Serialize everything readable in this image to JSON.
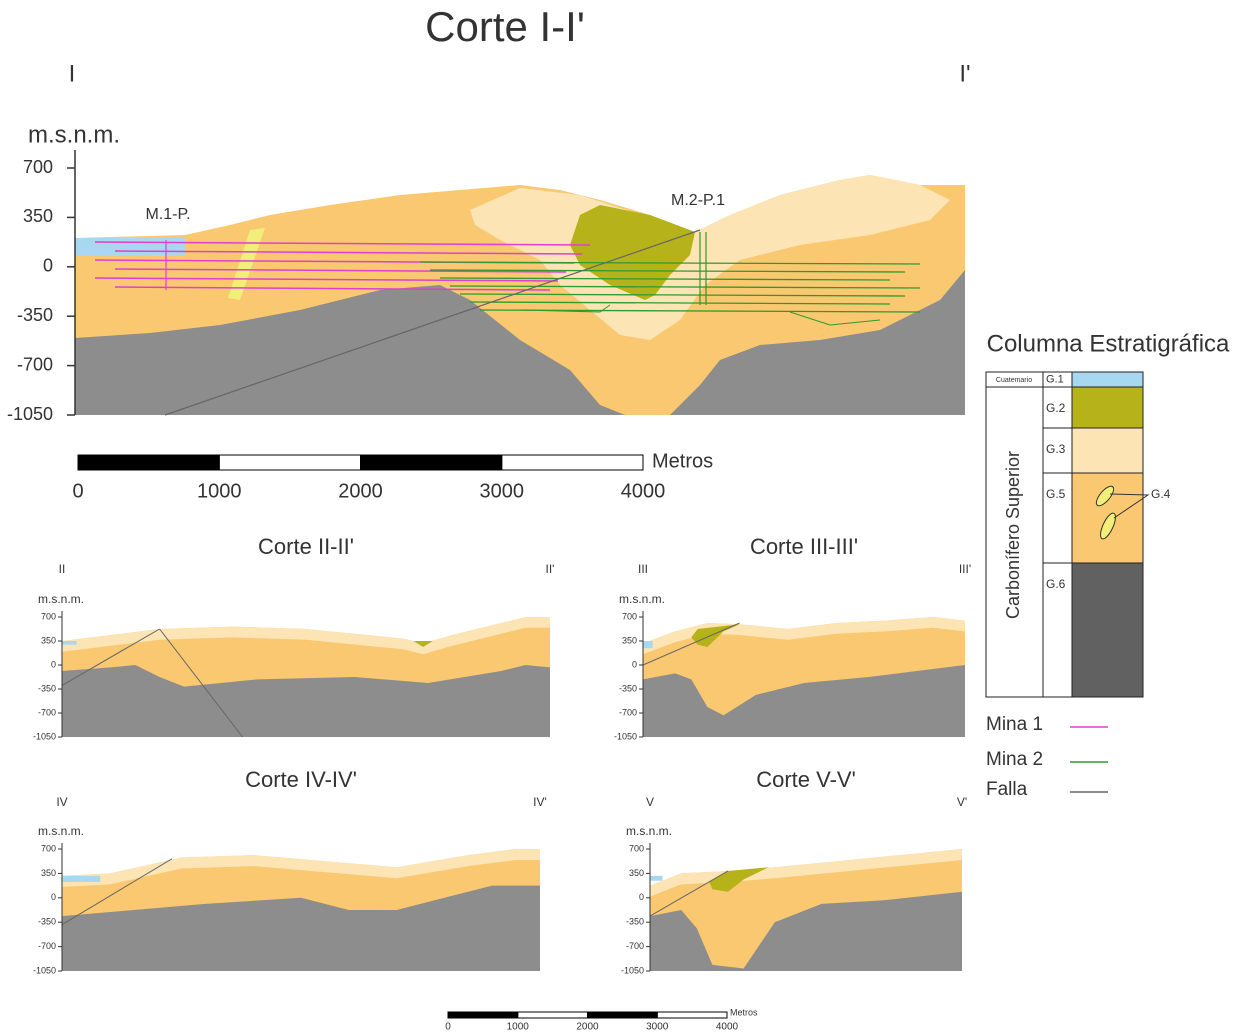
{
  "main_section": {
    "title": "Corte I-I'",
    "start": "I",
    "end": "I'",
    "axis_label": "m.s.n.m.",
    "yticks": [
      700,
      350,
      0,
      -350,
      -700,
      -1050
    ],
    "labels": [
      "M.1-P.",
      "M.2-P.1"
    ]
  },
  "scale_bar": {
    "ticks": [
      0,
      1000,
      2000,
      3000,
      4000
    ],
    "unit": "Metros"
  },
  "sections": [
    {
      "title": "Corte II-II'",
      "start": "II",
      "end": "II'",
      "axis_label": "m.s.n.m.",
      "yticks": [
        700,
        350,
        0,
        -350,
        -700,
        -1050
      ]
    },
    {
      "title": "Corte III-III'",
      "start": "III",
      "end": "III'",
      "axis_label": "m.s.n.m.",
      "yticks": [
        700,
        350,
        0,
        -350,
        -700,
        -1050
      ]
    },
    {
      "title": "Corte IV-IV'",
      "start": "IV",
      "end": "IV'",
      "axis_label": "m.s.n.m.",
      "yticks": [
        700,
        350,
        0,
        -350,
        -700,
        -1050
      ]
    },
    {
      "title": "Corte V-V'",
      "start": "V",
      "end": "V'",
      "axis_label": "m.s.n.m.",
      "yticks": [
        700,
        350,
        0,
        -350,
        -700,
        -1050
      ]
    }
  ],
  "column": {
    "title": "Columna Estratigráfica",
    "era_top": "Cuatemario",
    "era": "Carbonífero Superior",
    "groups": [
      "G.1",
      "G.2",
      "G.3",
      "G.5",
      "G.6"
    ],
    "inset_label": "G.4"
  },
  "legend": [
    "Mina 1",
    "Mina 2",
    "Falla"
  ],
  "bottom_scale_bar": {
    "ticks": [
      0,
      1000,
      2000,
      3000,
      4000
    ],
    "unit": "Metros"
  }
}
